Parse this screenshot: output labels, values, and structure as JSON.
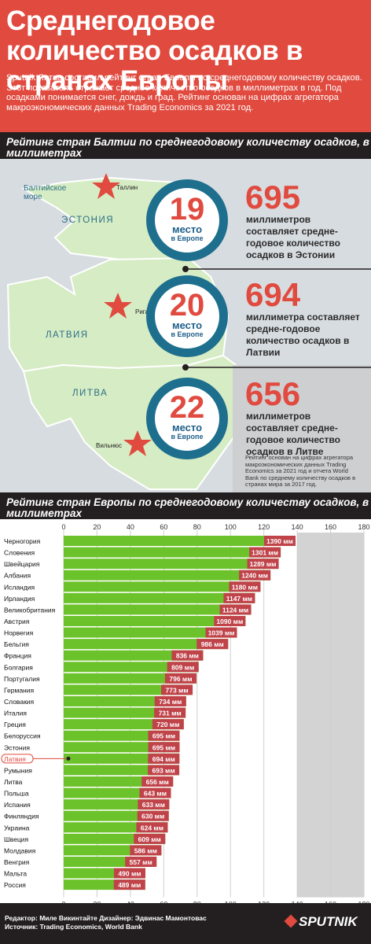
{
  "header": {
    "title": "Среднегодовое количество осадков в странах Европы",
    "intro": "Sputnik Литва составил рейтинг стран Европы по среднегодовому количеству осадков. Этот показатель отражает среднее количество осадков в миллиметрах в год. Под осадками понимается снег, дождь и град. Рейтинг основан на цифрах агрегатора макроэкономических данных Trading Economics за 2021 год."
  },
  "baltic": {
    "section_title": "Рейтинг стран Балтии по среднегодовому количеству осадков, в миллиметрах",
    "sea_label": "Балтийское море",
    "countries": [
      {
        "map_label": "ЭСТОНИЯ",
        "city": "Таллин",
        "rank": "19",
        "rank_word": "место",
        "rank_sub": "в Европе",
        "value": "695",
        "desc": "миллиметров составляет средне-годовое количество осадков в Эстонии"
      },
      {
        "map_label": "ЛАТВИЯ",
        "city": "Рига",
        "rank": "20",
        "rank_word": "место",
        "rank_sub": "в Европе",
        "value": "694",
        "desc": "миллиметра составляет средне-годовое количество осадков в Латвии"
      },
      {
        "map_label": "ЛИТВА",
        "city": "Вильнюс",
        "rank": "22",
        "rank_word": "место",
        "rank_sub": "в Европе",
        "value": "656",
        "desc": "миллиметров составляет средне-годовое количество осадков в Литве"
      }
    ],
    "note": "Рейтинг основан на цифрах агрегатора макроэкономических данных Trading Economics за 2021 год и отчета World Bank по среднему количеству осадков в странах мира за 2017 год."
  },
  "europe": {
    "section_title": "Рейтинг стран Европы по среднегодовому количеству осадков, в миллиметрах"
  },
  "colors": {
    "bar": "#6cc22a",
    "label_bg": "#c0434a",
    "highlight": "#e04a3f",
    "header_bg": "#e04a3f",
    "dark": "#231f20",
    "circle": "#1d6f8d"
  },
  "chart_data": {
    "type": "bar",
    "orientation": "horizontal",
    "unit_suffix": " мм",
    "categories": [
      "Черногория",
      "Словения",
      "Швейцария",
      "Албания",
      "Исландия",
      "Ирландия",
      "Великобритания",
      "Австрия",
      "Норвегия",
      "Бельгия",
      "Франция",
      "Болгария",
      "Португалия",
      "Германия",
      "Словакия",
      "Италия",
      "Греция",
      "Белоруссия",
      "Эстония",
      "Латвия",
      "Румыния",
      "Литва",
      "Польша",
      "Испания",
      "Финляндия",
      "Украина",
      "Швеция",
      "Молдавия",
      "Венгрия",
      "Мальта",
      "Россия"
    ],
    "values": [
      1390,
      1301,
      1289,
      1240,
      1180,
      1147,
      1124,
      1090,
      1039,
      986,
      836,
      809,
      796,
      773,
      734,
      731,
      720,
      695,
      695,
      694,
      693,
      656,
      643,
      633,
      630,
      624,
      609,
      586,
      557,
      490,
      489
    ],
    "highlight": "Латвия",
    "xticks": [
      "0",
      "20",
      "40",
      "60",
      "80",
      "100",
      "120",
      "140",
      "160",
      "180"
    ],
    "xlim": [
      0,
      180
    ]
  },
  "footer": {
    "credits_line1": "Редактор: Миле Викинтайте  Дизайнер: Эдвинас Мамонтовас",
    "credits_line2": "Источник: Trading Economics, World Bank",
    "logo": "SPUTNIK"
  }
}
